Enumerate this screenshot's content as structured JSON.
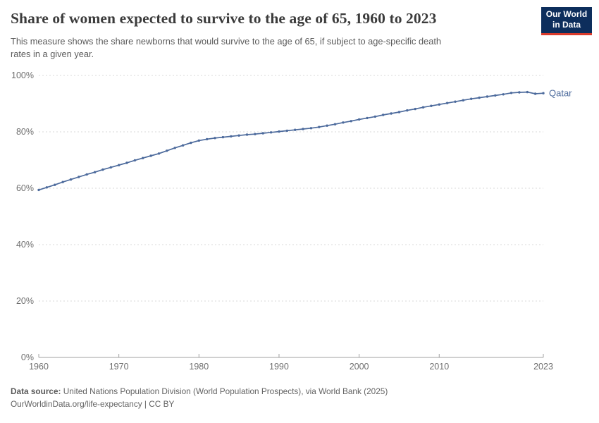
{
  "header": {
    "title": "Share of women expected to survive to the age of 65, 1960 to 2023",
    "subtitle_line1": "This measure shows the share newborns that would survive to the age of 65, if subject to age-specific death",
    "subtitle_line2": "rates in a given year.",
    "logo_line1": "Our World",
    "logo_line2": "in Data",
    "logo_bg_color": "#0d2e5c",
    "logo_accent_color": "#d93a2b"
  },
  "chart_data": {
    "type": "line",
    "title": "Share of women expected to survive to the age of 65, 1960 to 2023",
    "xlabel": "",
    "ylabel": "",
    "xlim": [
      1960,
      2023
    ],
    "ylim": [
      0,
      100
    ],
    "grid": "horizontal-dashed",
    "legend_position": "end-of-line",
    "xticks": [
      1960,
      1970,
      1980,
      1990,
      2000,
      2010,
      2023
    ],
    "ytick_labels": [
      "0%",
      "20%",
      "40%",
      "60%",
      "80%",
      "100%"
    ],
    "ytick_values": [
      0,
      20,
      40,
      60,
      80,
      100
    ],
    "line_color": "#4c6a9c",
    "grid_color": "#dadada",
    "axis_color": "#a1a1a1",
    "series": [
      {
        "name": "Qatar",
        "years": [
          1960,
          1961,
          1962,
          1963,
          1964,
          1965,
          1966,
          1967,
          1968,
          1969,
          1970,
          1971,
          1972,
          1973,
          1974,
          1975,
          1976,
          1977,
          1978,
          1979,
          1980,
          1981,
          1982,
          1983,
          1984,
          1985,
          1986,
          1987,
          1988,
          1989,
          1990,
          1991,
          1992,
          1993,
          1994,
          1995,
          1996,
          1997,
          1998,
          1999,
          2000,
          2001,
          2002,
          2003,
          2004,
          2005,
          2006,
          2007,
          2008,
          2009,
          2010,
          2011,
          2012,
          2013,
          2014,
          2015,
          2016,
          2017,
          2018,
          2019,
          2020,
          2021,
          2022,
          2023
        ],
        "values": [
          59.4,
          60.3,
          61.2,
          62.2,
          63.1,
          64.0,
          64.9,
          65.7,
          66.6,
          67.4,
          68.2,
          69.0,
          69.9,
          70.7,
          71.5,
          72.3,
          73.3,
          74.3,
          75.2,
          76.1,
          76.9,
          77.4,
          77.8,
          78.1,
          78.4,
          78.7,
          79.0,
          79.2,
          79.5,
          79.8,
          80.1,
          80.4,
          80.7,
          81.0,
          81.3,
          81.7,
          82.2,
          82.7,
          83.3,
          83.8,
          84.4,
          84.9,
          85.4,
          86.0,
          86.5,
          87.0,
          87.6,
          88.1,
          88.7,
          89.2,
          89.7,
          90.2,
          90.7,
          91.2,
          91.7,
          92.1,
          92.5,
          92.9,
          93.3,
          93.8,
          94.0,
          94.1,
          93.5,
          93.7
        ]
      }
    ],
    "end_label": "Qatar"
  },
  "footer": {
    "source_label": "Data source:",
    "source_text": " United Nations Population Division (World Population Prospects), via World Bank (2025)",
    "license_text": "OurWorldinData.org/life-expectancy | CC BY"
  }
}
